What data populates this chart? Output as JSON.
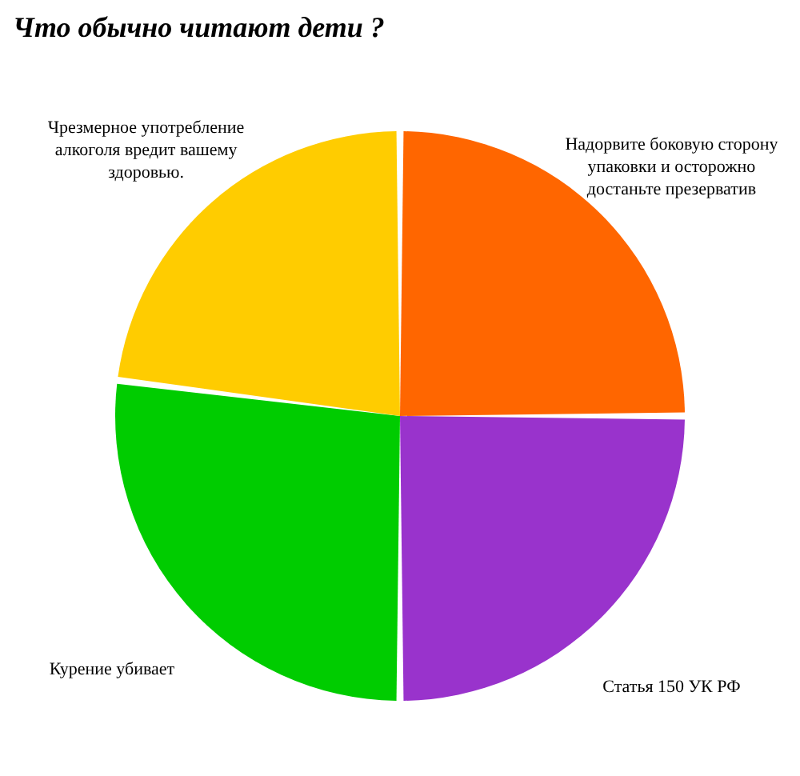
{
  "chart_data": {
    "type": "pie",
    "title": "Что обычно читают дети ?",
    "categories": [
      "Надорвите боковую сторону упаковки и осторожно достаньте презерватив",
      "Статья 150 УК РФ",
      "Курение убивает",
      "Чрезмерное употребление алкоголя вредит вашему здоровью."
    ],
    "values": [
      25,
      25,
      27,
      23
    ],
    "colors": [
      "#ff6600",
      "#9933cc",
      "#00cc00",
      "#ffcc00"
    ],
    "legend": false
  }
}
